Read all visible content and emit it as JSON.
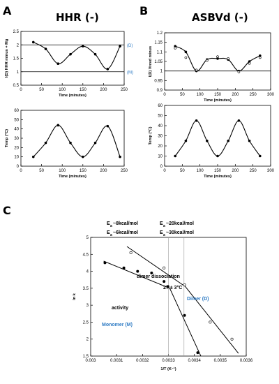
{
  "panels": {
    "A": {
      "letter": "A",
      "title": "HHR (-)"
    },
    "B": {
      "letter": "B",
      "title": "ASBVd (-)"
    },
    "C": {
      "letter": "C"
    }
  },
  "chart_data": [
    {
      "id": "A_top",
      "type": "scatter",
      "xlabel": "Time (minutes)",
      "ylabel": "I(D) HHR minus + Mg",
      "xlim": [
        0,
        250
      ],
      "ylim": [
        0.5,
        2.5
      ],
      "xticks": [
        0,
        50,
        100,
        150,
        200,
        250
      ],
      "yticks": [
        0.5,
        1,
        1.5,
        2,
        2.5
      ],
      "ref_lines": [
        {
          "y": 2,
          "label": "(D)"
        },
        {
          "y": 1,
          "label": "(M)"
        }
      ],
      "series": [
        {
          "marker": "filled",
          "x": [
            30,
            60,
            90,
            120,
            150,
            180,
            210,
            240
          ],
          "y": [
            2.1,
            1.85,
            1.3,
            1.65,
            1.95,
            1.65,
            1.1,
            1.95
          ]
        }
      ]
    },
    {
      "id": "A_bottom",
      "type": "scatter",
      "xlabel": "Time (minutes)",
      "ylabel": "Temp (°C)",
      "xlim": [
        0,
        250
      ],
      "ylim": [
        0,
        60
      ],
      "xticks": [
        0,
        50,
        100,
        150,
        200,
        250
      ],
      "yticks": [
        0,
        10,
        20,
        30,
        40,
        50,
        60
      ],
      "series": [
        {
          "marker": "filled",
          "x": [
            30,
            60,
            90,
            120,
            150,
            180,
            210,
            240
          ],
          "y": [
            10,
            25,
            44,
            25,
            10,
            25,
            43,
            10
          ]
        }
      ]
    },
    {
      "id": "B_top",
      "type": "scatter",
      "xlabel": "Time (minutes)",
      "ylabel": "I(D) Vrevd minus",
      "xlim": [
        0,
        300
      ],
      "ylim": [
        0.9,
        1.2
      ],
      "xticks": [
        0,
        50,
        100,
        150,
        200,
        250,
        300
      ],
      "yticks": [
        0.9,
        0.95,
        1,
        1.05,
        1.1,
        1.15,
        1.2
      ],
      "ref_lines": [
        {
          "y": 1
        }
      ],
      "series": [
        {
          "marker": "filled",
          "x": [
            30,
            60,
            90,
            120,
            150,
            180,
            210,
            240,
            270
          ],
          "y": [
            1.13,
            1.1,
            1.0,
            1.06,
            1.065,
            1.06,
            1.0,
            1.05,
            1.08
          ]
        },
        {
          "marker": "open",
          "x": [
            30,
            60,
            90,
            120,
            150,
            180,
            210,
            240,
            270
          ],
          "y": [
            1.12,
            1.07,
            1.005,
            1.055,
            1.075,
            1.065,
            0.995,
            1.04,
            1.07
          ]
        }
      ]
    },
    {
      "id": "B_bottom",
      "type": "scatter",
      "xlabel": "Time (minutes)",
      "ylabel": "Temp (°C)",
      "xlim": [
        0,
        300
      ],
      "ylim": [
        0,
        60
      ],
      "xticks": [
        0,
        50,
        100,
        150,
        200,
        250,
        300
      ],
      "yticks": [
        0,
        10,
        20,
        30,
        40,
        50,
        60
      ],
      "series": [
        {
          "marker": "filled",
          "x": [
            30,
            60,
            90,
            120,
            150,
            180,
            210,
            240,
            270
          ],
          "y": [
            10,
            25,
            45,
            25,
            10,
            25,
            45,
            25,
            10
          ]
        }
      ]
    },
    {
      "id": "C",
      "type": "scatter",
      "xlabel": "1/T (K⁻¹)",
      "ylabel": "ln k",
      "xlim": [
        0.003,
        0.0036
      ],
      "ylim": [
        1.5,
        5
      ],
      "xticks": [
        0.003,
        0.0031,
        0.0032,
        0.0033,
        0.0034,
        0.0035,
        0.0036
      ],
      "yticks": [
        1.5,
        2,
        2.5,
        3,
        3.5,
        4,
        4.5,
        5
      ],
      "vlines": [
        0.0033,
        0.00336
      ],
      "annotations": [
        "dimer dissociation",
        "27 ± 3°C",
        "activity",
        "Dimer (D)",
        "Monomer (M)"
      ],
      "energies": [
        {
          "prefix": "E",
          "sub": "a",
          "text": "~8kcal/mol"
        },
        {
          "prefix": "E",
          "sub": "a",
          "text": "~20kcal/mol"
        },
        {
          "prefix": "E",
          "sub": "a",
          "text": "~6kcal/mol"
        },
        {
          "prefix": "E",
          "sub": "a",
          "text": "~30kcal/mol"
        }
      ],
      "series": [
        {
          "name": "activity",
          "marker": "filled",
          "x": [
            0.003055,
            0.003128,
            0.003181,
            0.003235,
            0.003283,
            0.003298,
            0.003362,
            0.003413
          ],
          "y": [
            4.25,
            4.1,
            4.0,
            3.95,
            3.7,
            3.55,
            2.7,
            1.6
          ]
        },
        {
          "name": "dimer dissociation",
          "marker": "open",
          "x": [
            0.003155,
            0.003283,
            0.003362,
            0.003461,
            0.003545
          ],
          "y": [
            4.55,
            4.1,
            3.6,
            2.5,
            2.0
          ]
        }
      ],
      "fits": [
        {
          "x": [
            0.00305,
            0.003305
          ],
          "y": [
            4.3,
            3.5
          ]
        },
        {
          "x": [
            0.003305,
            0.003425
          ],
          "y": [
            3.5,
            1.5
          ]
        },
        {
          "x": [
            0.00314,
            0.003365
          ],
          "y": [
            4.73,
            3.55
          ]
        },
        {
          "x": [
            0.003365,
            0.00357
          ],
          "y": [
            3.55,
            1.58
          ]
        }
      ]
    }
  ]
}
